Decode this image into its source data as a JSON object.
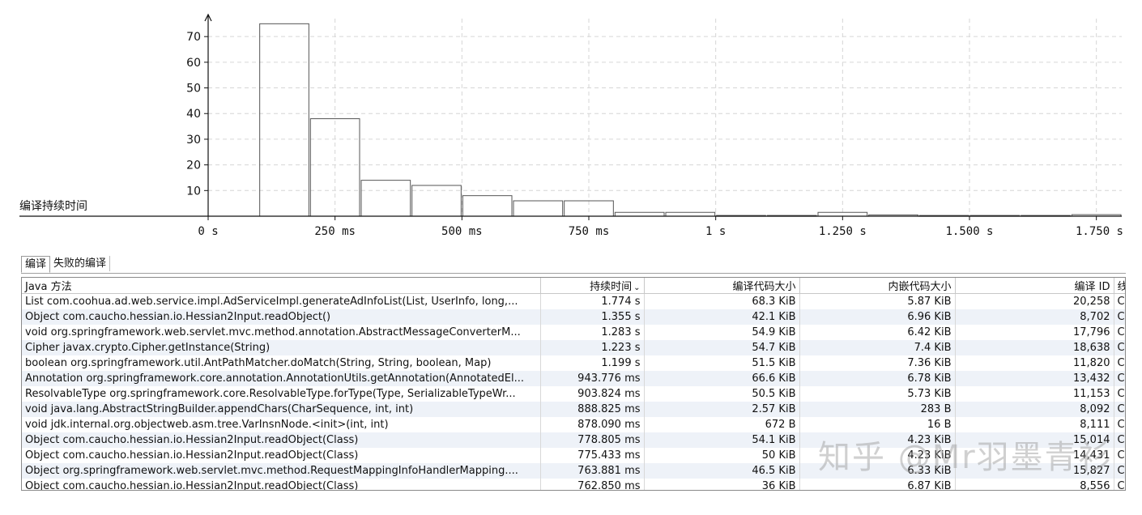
{
  "chart_data": {
    "type": "bar",
    "title": "编译持续时间",
    "x_unit": "ms",
    "x_ticks": [
      {
        "value": 0,
        "label": "0 s"
      },
      {
        "value": 250,
        "label": "250 ms"
      },
      {
        "value": 500,
        "label": "500 ms"
      },
      {
        "value": 750,
        "label": "750 ms"
      },
      {
        "value": 1000,
        "label": "1 s"
      },
      {
        "value": 1250,
        "label": "1.250 s"
      },
      {
        "value": 1500,
        "label": "1.500 s"
      },
      {
        "value": 1750,
        "label": "1.750 s"
      }
    ],
    "y_ticks": [
      10,
      20,
      30,
      40,
      50,
      60,
      70
    ],
    "xlim": [
      0,
      1800
    ],
    "ylim": [
      0,
      77
    ],
    "bin_width": 100,
    "bins": [
      {
        "x0": 100,
        "value": 75
      },
      {
        "x0": 200,
        "value": 38
      },
      {
        "x0": 300,
        "value": 14
      },
      {
        "x0": 400,
        "value": 12
      },
      {
        "x0": 500,
        "value": 8
      },
      {
        "x0": 600,
        "value": 6
      },
      {
        "x0": 700,
        "value": 6
      },
      {
        "x0": 800,
        "value": 1.5
      },
      {
        "x0": 900,
        "value": 1.5
      },
      {
        "x0": 1000,
        "value": 0.3
      },
      {
        "x0": 1100,
        "value": 0.3
      },
      {
        "x0": 1200,
        "value": 1.5
      },
      {
        "x0": 1300,
        "value": 0.5
      },
      {
        "x0": 1400,
        "value": 0.3
      },
      {
        "x0": 1500,
        "value": 0.3
      },
      {
        "x0": 1600,
        "value": 0.3
      },
      {
        "x0": 1700,
        "value": 0.6
      }
    ],
    "grid": true
  },
  "tabs": [
    "编译",
    "失败的编译"
  ],
  "table": {
    "columns": [
      "Java 方法",
      "持续时间",
      "编译代码大小",
      "内嵌代码大小",
      "编译 ID",
      "线"
    ],
    "sort_indicator": "⌄",
    "rows": [
      [
        "List com.coohua.ad.web.service.impl.AdServiceImpl.generateAdInfoList(List, UserInfo, long,...",
        "1.774 s",
        "68.3 KiB",
        "5.87 KiB",
        "20,258",
        "C"
      ],
      [
        "Object com.caucho.hessian.io.Hessian2Input.readObject()",
        "1.355 s",
        "42.1 KiB",
        "6.96 KiB",
        "8,702",
        "C"
      ],
      [
        "void org.springframework.web.servlet.mvc.method.annotation.AbstractMessageConverterM...",
        "1.283 s",
        "54.9 KiB",
        "6.42 KiB",
        "17,796",
        "C"
      ],
      [
        "Cipher javax.crypto.Cipher.getInstance(String)",
        "1.223 s",
        "54.7 KiB",
        "7.4 KiB",
        "18,638",
        "C"
      ],
      [
        "boolean org.springframework.util.AntPathMatcher.doMatch(String, String, boolean, Map)",
        "1.199 s",
        "51.5 KiB",
        "7.36 KiB",
        "11,820",
        "C"
      ],
      [
        "Annotation org.springframework.core.annotation.AnnotationUtils.getAnnotation(AnnotatedEl...",
        "943.776 ms",
        "66.6 KiB",
        "6.78 KiB",
        "13,432",
        "C"
      ],
      [
        "ResolvableType org.springframework.core.ResolvableType.forType(Type, SerializableTypeWr...",
        "903.824 ms",
        "50.5 KiB",
        "5.73 KiB",
        "11,153",
        "C"
      ],
      [
        "void java.lang.AbstractStringBuilder.appendChars(CharSequence, int, int)",
        "888.825 ms",
        "2.57 KiB",
        "283 B",
        "8,092",
        "C"
      ],
      [
        "void jdk.internal.org.objectweb.asm.tree.VarInsnNode.<init>(int, int)",
        "878.090 ms",
        "672 B",
        "16 B",
        "8,111",
        "C"
      ],
      [
        "Object com.caucho.hessian.io.Hessian2Input.readObject(Class)",
        "778.805 ms",
        "54.1 KiB",
        "4.23 KiB",
        "15,014",
        "C"
      ],
      [
        "Object com.caucho.hessian.io.Hessian2Input.readObject(Class)",
        "775.433 ms",
        "50 KiB",
        "4.23 KiB",
        "14,431",
        "C"
      ],
      [
        "Object org.springframework.web.servlet.mvc.method.RequestMappingInfoHandlerMapping....",
        "763.881 ms",
        "46.5 KiB",
        "6.33 KiB",
        "15,827",
        "C"
      ],
      [
        "Object com.caucho.hessian.io.Hessian2Input.readObject(Class)",
        "762.850 ms",
        "36 KiB",
        "6.87 KiB",
        "8,556",
        "C"
      ]
    ]
  },
  "watermark": "知乎 @Mr羽墨青衫",
  "colors": {
    "bar_top": "#f3e65c",
    "bar_bottom": "#f7f1c8",
    "bar_stroke": "#555555",
    "row_alt": "#eef2f8"
  }
}
